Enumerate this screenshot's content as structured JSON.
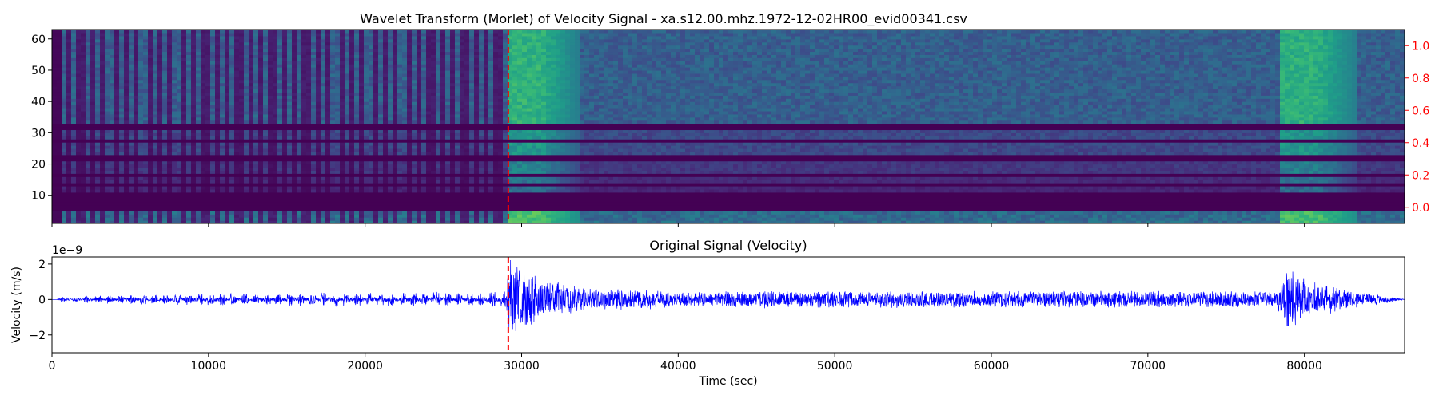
{
  "chart_data": [
    {
      "type": "heatmap",
      "title": "Wavelet Transform (Morlet) of Velocity Signal - xa.s12.00.mhz.1972-12-02HR00_evid00341.csv",
      "colormap": "viridis",
      "xlim": [
        0,
        86400
      ],
      "ylim": [
        1,
        63
      ],
      "y_ticks": [
        10,
        20,
        30,
        40,
        50,
        60
      ],
      "x_ticks": [
        0,
        10000,
        20000,
        30000,
        40000,
        50000,
        60000,
        70000,
        80000
      ],
      "right_axis": {
        "ylim": [
          -0.1,
          1.1
        ],
        "ticks": [
          0.0,
          0.2,
          0.4,
          0.6,
          0.8,
          1.0
        ],
        "tick_labels": [
          "0.0",
          "0.2",
          "0.4",
          "0.6",
          "0.8",
          "1.0"
        ],
        "color": "#ff0000"
      },
      "marker_line": {
        "x": 29150,
        "color": "#ff0000",
        "style": "dashed"
      },
      "events": [
        {
          "start": 29150,
          "end": 31200,
          "strength": 1.0
        },
        {
          "start": 78300,
          "end": 80900,
          "strength": 0.95
        }
      ],
      "pulse_train": {
        "start": 600,
        "end": 29000,
        "period": 720
      },
      "bands": [
        {
          "scale_range": [
            1,
            5
          ],
          "brightness": 0.35
        },
        {
          "scale_range": [
            11,
            13
          ],
          "brightness": 0.1
        },
        {
          "scale_range": [
            14,
            16
          ],
          "brightness": 0.12
        },
        {
          "scale_range": [
            17,
            21
          ],
          "brightness": 0.16
        },
        {
          "scale_range": [
            23,
            27
          ],
          "brightness": 0.22
        },
        {
          "scale_range": [
            28,
            31
          ],
          "brightness": 0.22
        },
        {
          "scale_range": [
            33,
            63
          ],
          "brightness": 0.3
        }
      ]
    },
    {
      "type": "line",
      "title": "Original Signal (Velocity)",
      "xlabel": "Time (sec)",
      "ylabel": "Velocity (m/s)",
      "offset_text": "1e−9",
      "xlim": [
        0,
        86400
      ],
      "ylim": [
        -3.0,
        2.4
      ],
      "y_ticks": [
        -2,
        0,
        2
      ],
      "y_tick_labels": [
        "−2",
        "0",
        "2"
      ],
      "x_ticks": [
        0,
        10000,
        20000,
        30000,
        40000,
        50000,
        60000,
        70000,
        80000
      ],
      "x_tick_labels": [
        "0",
        "10000",
        "20000",
        "30000",
        "40000",
        "50000",
        "60000",
        "70000",
        "80000"
      ],
      "line_color": "#0000ff",
      "marker_line": {
        "x": 29150,
        "color": "#ff0000",
        "style": "dashed"
      },
      "envelope": [
        {
          "x": 300,
          "amp": 0.0
        },
        {
          "x": 600,
          "amp": 0.15
        },
        {
          "x": 5000,
          "amp": 0.3
        },
        {
          "x": 15000,
          "amp": 0.4
        },
        {
          "x": 28000,
          "amp": 0.45
        },
        {
          "x": 29000,
          "amp": 0.5
        },
        {
          "x": 29150,
          "amp": 2.2
        },
        {
          "x": 29700,
          "amp": 2.6
        },
        {
          "x": 31000,
          "amp": 1.3
        },
        {
          "x": 34000,
          "amp": 0.7
        },
        {
          "x": 40000,
          "amp": 0.5
        },
        {
          "x": 60000,
          "amp": 0.5
        },
        {
          "x": 78200,
          "amp": 0.5
        },
        {
          "x": 79000,
          "amp": 2.0
        },
        {
          "x": 80500,
          "amp": 1.1
        },
        {
          "x": 83000,
          "amp": 0.55
        },
        {
          "x": 86000,
          "amp": 0.1
        },
        {
          "x": 86400,
          "amp": 0.0
        }
      ]
    }
  ]
}
